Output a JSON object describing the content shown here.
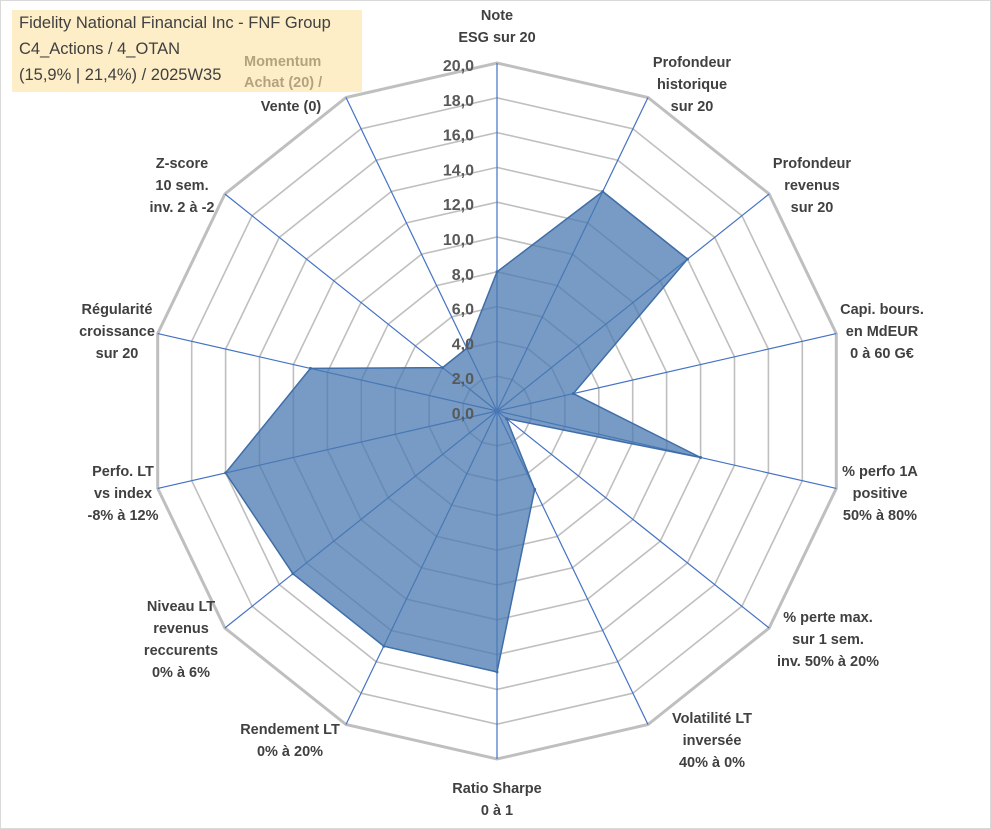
{
  "title": {
    "line1": "Fidelity National Financial Inc - FNF Group",
    "line2": "C4_Actions / 4_OTAN",
    "line3": "(15,9% | 21,4%) / 2025W35"
  },
  "chart_data": {
    "type": "radar",
    "axes": [
      [
        "Note",
        "ESG sur 20"
      ],
      [
        "Profondeur",
        "historique",
        "sur 20"
      ],
      [
        "Profondeur",
        "revenus",
        "sur 20"
      ],
      [
        "Capi. bours.",
        "en MdEUR",
        "0 à 60 G€"
      ],
      [
        "% perfo 1A",
        "positive",
        "50% à 80%"
      ],
      [
        "% perte max.",
        "sur 1 sem.",
        "inv. 50% à 20%"
      ],
      [
        "Volatilité LT",
        "inversée",
        "40% à 0%"
      ],
      [
        "Ratio Sharpe",
        "0 à 1"
      ],
      [
        "Rendement LT",
        "0% à 20%"
      ],
      [
        "Niveau LT",
        "revenus",
        "reccurents",
        "0% à 6%"
      ],
      [
        "Perfo. LT",
        "vs index",
        "-8% à 12%"
      ],
      [
        "Régularité",
        "croissance",
        "sur 20"
      ],
      [
        "Z-score",
        "10 sem.",
        "inv. 2 à -2"
      ],
      [
        "Momentum",
        "Achat (20) /",
        "Vente (0)"
      ]
    ],
    "values": [
      8.0,
      14.0,
      14.0,
      4.5,
      12.0,
      0.7,
      5.0,
      15.0,
      15.0,
      15.0,
      16.0,
      11.0,
      4.0,
      4.0
    ],
    "r_range": [
      0,
      20
    ],
    "r_ticks": [
      "0,0",
      "2,0",
      "4,0",
      "6,0",
      "8,0",
      "10,0",
      "12,0",
      "14,0",
      "16,0",
      "18,0",
      "20,0"
    ],
    "series_color": "#4a7ab0",
    "grid_color": "#bfbfbf",
    "spoke_color": "#4472c4"
  }
}
